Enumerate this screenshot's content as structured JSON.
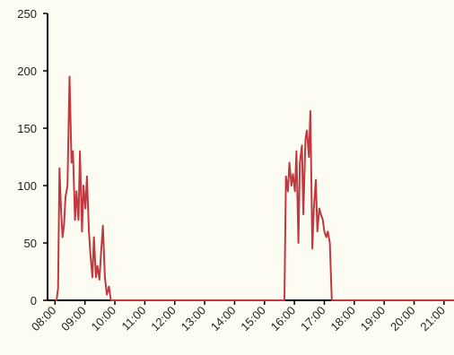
{
  "chart_data": {
    "type": "line",
    "x": [
      "08:00",
      "08:03",
      "08:06",
      "08:09",
      "08:12",
      "08:15",
      "08:18",
      "08:21",
      "08:25",
      "08:29",
      "08:33",
      "08:36",
      "08:40",
      "08:43",
      "08:47",
      "08:50",
      "08:54",
      "08:57",
      "09:01",
      "09:04",
      "09:08",
      "09:11",
      "09:15",
      "09:18",
      "09:22",
      "09:25",
      "09:29",
      "09:32",
      "09:36",
      "09:40",
      "09:44",
      "09:48",
      "09:52",
      "15:40",
      "15:43",
      "15:47",
      "15:50",
      "15:54",
      "15:57",
      "16:01",
      "16:04",
      "16:08",
      "16:11",
      "16:15",
      "16:18",
      "16:22",
      "16:25",
      "16:29",
      "16:32",
      "16:36",
      "16:39",
      "16:43",
      "16:46",
      "16:50",
      "16:53",
      "16:57",
      "17:00",
      "17:04",
      "17:07",
      "17:11",
      "17:15",
      "17:18",
      "21:20"
    ],
    "values": [
      0,
      0,
      10,
      115,
      80,
      55,
      65,
      90,
      100,
      195,
      120,
      130,
      70,
      95,
      70,
      130,
      60,
      100,
      80,
      108,
      60,
      40,
      20,
      55,
      20,
      30,
      18,
      40,
      65,
      20,
      5,
      12,
      0,
      0,
      108,
      95,
      120,
      100,
      110,
      95,
      130,
      50,
      120,
      135,
      75,
      140,
      148,
      125,
      165,
      45,
      80,
      105,
      60,
      80,
      75,
      70,
      60,
      55,
      60,
      50,
      0,
      0,
      0
    ],
    "color": "#c0393f",
    "xlim": [
      "07:45",
      "21:20"
    ],
    "xticks": [
      "08:00",
      "09:00",
      "10:00",
      "11:00",
      "12:00",
      "13:00",
      "14:00",
      "15:00",
      "16:00",
      "17:00",
      "18:00",
      "19:00",
      "20:00",
      "21:00"
    ],
    "ylim": [
      0,
      250
    ],
    "yticks": [
      0,
      50,
      100,
      150,
      200,
      250
    ]
  }
}
